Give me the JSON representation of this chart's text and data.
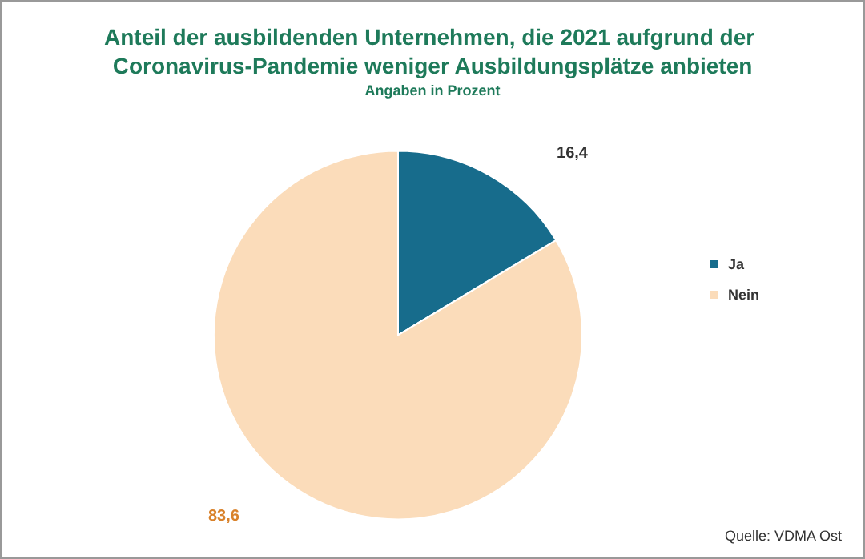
{
  "chart_data": {
    "type": "pie",
    "title": "Anteil der ausbildenden Unternehmen, die 2021 aufgrund der Coronavirus-Pandemie weniger Ausbildungsplätze anbieten",
    "subtitle": "Angaben in Prozent",
    "categories": [
      "Ja",
      "Nein"
    ],
    "values": [
      16.4,
      83.6
    ],
    "colors": [
      "#176c8c",
      "#fbdcba"
    ],
    "value_labels": [
      "16,4",
      "83,6"
    ],
    "legend": "right",
    "annotations": [
      "Quelle: VDMA Ost"
    ]
  }
}
